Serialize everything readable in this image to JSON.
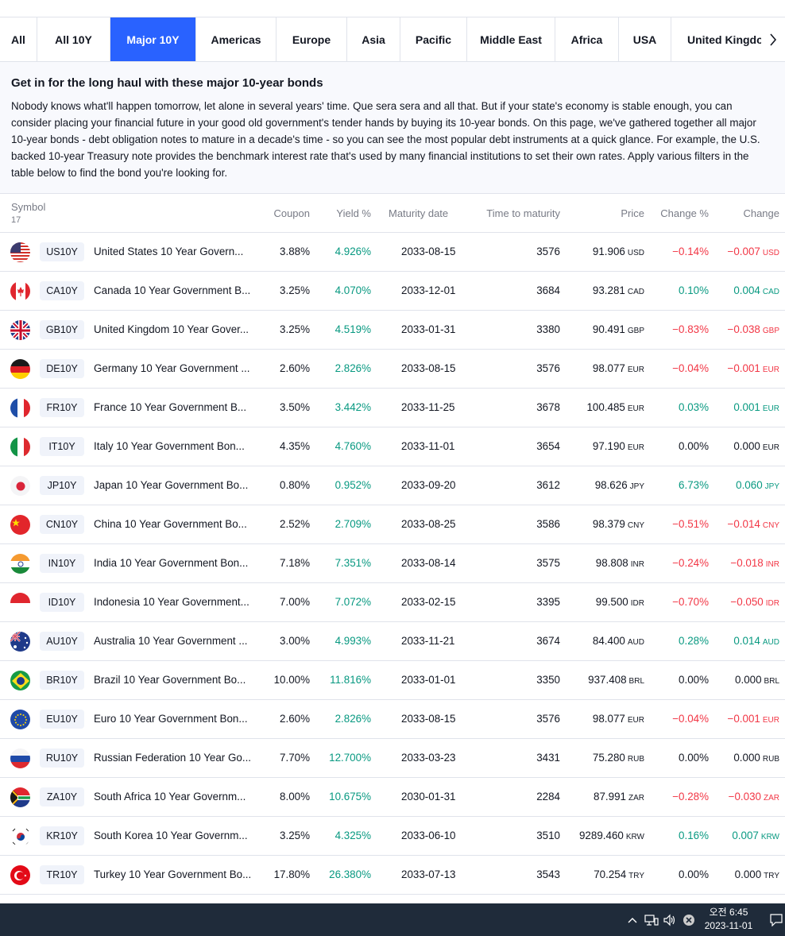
{
  "tabs": [
    {
      "label": "All"
    },
    {
      "label": "All 10Y"
    },
    {
      "label": "Major 10Y"
    },
    {
      "label": "Americas"
    },
    {
      "label": "Europe"
    },
    {
      "label": "Asia"
    },
    {
      "label": "Pacific"
    },
    {
      "label": "Middle East"
    },
    {
      "label": "Africa"
    },
    {
      "label": "USA"
    },
    {
      "label": "United Kingdom"
    }
  ],
  "active_tab": "Major 10Y",
  "intro": {
    "title": "Get in for the long haul with these major 10-year bonds",
    "body": "Nobody knows what'll happen tomorrow, let alone in several years' time. Que sera sera and all that. But if your state's economy is stable enough, you can consider placing your financial future in your good old government's tender hands by buying its 10-year bonds. On this page, we've gathered together all major 10-year bonds - debt obligation notes to mature in a decade's time - so you can see the most popular debt instruments at a quick glance. For example, the U.S. backed 10-year Treasury note provides the benchmark interest rate that's used by many financial institutions to set their own rates. Apply various filters in the table below to find the bond you're looking for."
  },
  "table": {
    "headers": {
      "symbol": "Symbol",
      "count": "17",
      "coupon": "Coupon",
      "yield": "Yield %",
      "maturity": "Maturity date",
      "ttm": "Time to maturity",
      "price": "Price",
      "change_pct": "Change %",
      "change": "Change"
    },
    "rows": [
      {
        "flag": "us-flag-icon",
        "ticker": "US10Y",
        "name": "United States 10 Year Govern...",
        "coupon": "3.88%",
        "yield": "4.926%",
        "maturity": "2033-08-15",
        "ttm": "3576",
        "price": "91.906",
        "currency": "USD",
        "chg_pct": "−0.14%",
        "chg": "−0.007",
        "dir": "neg"
      },
      {
        "flag": "ca-flag-icon",
        "ticker": "CA10Y",
        "name": "Canada 10 Year Government B...",
        "coupon": "3.25%",
        "yield": "4.070%",
        "maturity": "2033-12-01",
        "ttm": "3684",
        "price": "93.281",
        "currency": "CAD",
        "chg_pct": "0.10%",
        "chg": "0.004",
        "dir": "pos"
      },
      {
        "flag": "gb-flag-icon",
        "ticker": "GB10Y",
        "name": "United Kingdom 10 Year Gover...",
        "coupon": "3.25%",
        "yield": "4.519%",
        "maturity": "2033-01-31",
        "ttm": "3380",
        "price": "90.491",
        "currency": "GBP",
        "chg_pct": "−0.83%",
        "chg": "−0.038",
        "dir": "neg"
      },
      {
        "flag": "de-flag-icon",
        "ticker": "DE10Y",
        "name": "Germany 10 Year Government ...",
        "coupon": "2.60%",
        "yield": "2.826%",
        "maturity": "2033-08-15",
        "ttm": "3576",
        "price": "98.077",
        "currency": "EUR",
        "chg_pct": "−0.04%",
        "chg": "−0.001",
        "dir": "neg"
      },
      {
        "flag": "fr-flag-icon",
        "ticker": "FR10Y",
        "name": "France 10 Year Government B...",
        "coupon": "3.50%",
        "yield": "3.442%",
        "maturity": "2033-11-25",
        "ttm": "3678",
        "price": "100.485",
        "currency": "EUR",
        "chg_pct": "0.03%",
        "chg": "0.001",
        "dir": "pos"
      },
      {
        "flag": "it-flag-icon",
        "ticker": "IT10Y",
        "name": "Italy 10 Year Government Bon...",
        "coupon": "4.35%",
        "yield": "4.760%",
        "maturity": "2033-11-01",
        "ttm": "3654",
        "price": "97.190",
        "currency": "EUR",
        "chg_pct": "0.00%",
        "chg": "0.000",
        "dir": "zero"
      },
      {
        "flag": "jp-flag-icon",
        "ticker": "JP10Y",
        "name": "Japan 10 Year Government Bo...",
        "coupon": "0.80%",
        "yield": "0.952%",
        "maturity": "2033-09-20",
        "ttm": "3612",
        "price": "98.626",
        "currency": "JPY",
        "chg_pct": "6.73%",
        "chg": "0.060",
        "dir": "pos"
      },
      {
        "flag": "cn-flag-icon",
        "ticker": "CN10Y",
        "name": "China 10 Year Government Bo...",
        "coupon": "2.52%",
        "yield": "2.709%",
        "maturity": "2033-08-25",
        "ttm": "3586",
        "price": "98.379",
        "currency": "CNY",
        "chg_pct": "−0.51%",
        "chg": "−0.014",
        "dir": "neg"
      },
      {
        "flag": "in-flag-icon",
        "ticker": "IN10Y",
        "name": "India 10 Year Government Bon...",
        "coupon": "7.18%",
        "yield": "7.351%",
        "maturity": "2033-08-14",
        "ttm": "3575",
        "price": "98.808",
        "currency": "INR",
        "chg_pct": "−0.24%",
        "chg": "−0.018",
        "dir": "neg"
      },
      {
        "flag": "id-flag-icon",
        "ticker": "ID10Y",
        "name": "Indonesia 10 Year Government...",
        "coupon": "7.00%",
        "yield": "7.072%",
        "maturity": "2033-02-15",
        "ttm": "3395",
        "price": "99.500",
        "currency": "IDR",
        "chg_pct": "−0.70%",
        "chg": "−0.050",
        "dir": "neg"
      },
      {
        "flag": "au-flag-icon",
        "ticker": "AU10Y",
        "name": "Australia 10 Year Government ...",
        "coupon": "3.00%",
        "yield": "4.993%",
        "maturity": "2033-11-21",
        "ttm": "3674",
        "price": "84.400",
        "currency": "AUD",
        "chg_pct": "0.28%",
        "chg": "0.014",
        "dir": "pos"
      },
      {
        "flag": "br-flag-icon",
        "ticker": "BR10Y",
        "name": "Brazil 10 Year Government Bo...",
        "coupon": "10.00%",
        "yield": "11.816%",
        "maturity": "2033-01-01",
        "ttm": "3350",
        "price": "937.408",
        "currency": "BRL",
        "chg_pct": "0.00%",
        "chg": "0.000",
        "dir": "zero"
      },
      {
        "flag": "eu-flag-icon",
        "ticker": "EU10Y",
        "name": "Euro 10 Year Government Bon...",
        "coupon": "2.60%",
        "yield": "2.826%",
        "maturity": "2033-08-15",
        "ttm": "3576",
        "price": "98.077",
        "currency": "EUR",
        "chg_pct": "−0.04%",
        "chg": "−0.001",
        "dir": "neg"
      },
      {
        "flag": "ru-flag-icon",
        "ticker": "RU10Y",
        "name": "Russian Federation 10 Year Go...",
        "coupon": "7.70%",
        "yield": "12.700%",
        "maturity": "2033-03-23",
        "ttm": "3431",
        "price": "75.280",
        "currency": "RUB",
        "chg_pct": "0.00%",
        "chg": "0.000",
        "dir": "zero"
      },
      {
        "flag": "za-flag-icon",
        "ticker": "ZA10Y",
        "name": "South Africa 10 Year Governm...",
        "coupon": "8.00%",
        "yield": "10.675%",
        "maturity": "2030-01-31",
        "ttm": "2284",
        "price": "87.991",
        "currency": "ZAR",
        "chg_pct": "−0.28%",
        "chg": "−0.030",
        "dir": "neg"
      },
      {
        "flag": "kr-flag-icon",
        "ticker": "KR10Y",
        "name": "South Korea 10 Year Governm...",
        "coupon": "3.25%",
        "yield": "4.325%",
        "maturity": "2033-06-10",
        "ttm": "3510",
        "price": "9289.460",
        "currency": "KRW",
        "chg_pct": "0.16%",
        "chg": "0.007",
        "dir": "pos"
      },
      {
        "flag": "tr-flag-icon",
        "ticker": "TR10Y",
        "name": "Turkey 10 Year Government Bo...",
        "coupon": "17.80%",
        "yield": "26.380%",
        "maturity": "2033-07-13",
        "ttm": "3543",
        "price": "70.254",
        "currency": "TRY",
        "chg_pct": "0.00%",
        "chg": "0.000",
        "dir": "zero"
      }
    ]
  },
  "taskbar": {
    "time": "오전 6:45",
    "date": "2023-11-01"
  },
  "colors": {
    "accent": "#2962ff",
    "positive": "#089981",
    "negative": "#f23645",
    "taskbar": "#1f2b3a"
  }
}
